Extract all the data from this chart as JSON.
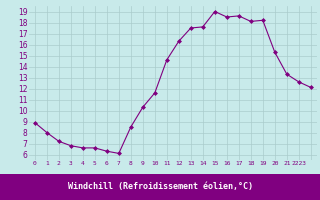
{
  "x": [
    0,
    1,
    2,
    3,
    4,
    5,
    6,
    7,
    8,
    9,
    10,
    11,
    12,
    13,
    14,
    15,
    16,
    17,
    18,
    19,
    20,
    21,
    22,
    23
  ],
  "y": [
    8.9,
    8.0,
    7.2,
    6.8,
    6.6,
    6.6,
    6.3,
    6.1,
    8.5,
    10.3,
    11.6,
    14.6,
    16.3,
    17.5,
    17.6,
    19.0,
    18.5,
    18.6,
    18.1,
    18.2,
    15.3,
    13.3,
    12.6,
    12.1
  ],
  "line_color": "#800080",
  "marker": "D",
  "marker_size": 2,
  "bg_color": "#c8eaea",
  "grid_color": "#aacccc",
  "xlabel": "Windchill (Refroidissement éolien,°C)",
  "xlabel_color": "#ffffff",
  "tick_color": "#800080",
  "bar_color": "#800080",
  "ylim": [
    5.5,
    19.5
  ],
  "yticks": [
    6,
    7,
    8,
    9,
    10,
    11,
    12,
    13,
    14,
    15,
    16,
    17,
    18,
    19
  ],
  "xticks": [
    0,
    1,
    2,
    3,
    4,
    5,
    6,
    7,
    8,
    9,
    10,
    11,
    12,
    13,
    14,
    15,
    16,
    17,
    18,
    19,
    20,
    21,
    22,
    23
  ]
}
